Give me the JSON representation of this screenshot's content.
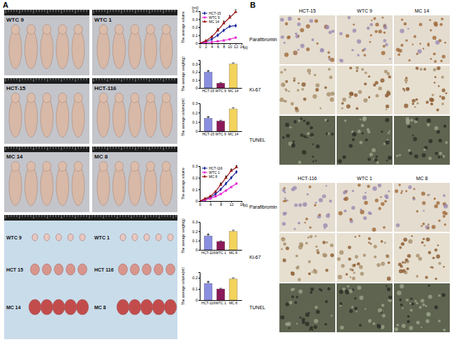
{
  "panel_labels": [
    "A",
    "B"
  ],
  "mice_photos": [
    [
      "WTC 9",
      "WTC 1"
    ],
    [
      "HCT-15",
      "HCT-116"
    ],
    [
      "MC 14",
      "MC 8"
    ]
  ],
  "tumor_photos": [
    [
      "WTC 9",
      "HCT 15",
      "MC 14"
    ],
    [
      "WTC 1",
      "HCT 116",
      "MC 8"
    ]
  ],
  "ihc_grids": [
    {
      "columns": [
        "HCT-15",
        "WTC 9",
        "MC 14"
      ],
      "rows": [
        "Parafibromin",
        "Ki-67",
        "TUNEL"
      ]
    },
    {
      "columns": [
        "HCT-116",
        "WTC 1",
        "MC 8"
      ],
      "rows": [
        "Parafibromin",
        "Ki-67",
        "TUNEL"
      ]
    }
  ],
  "chart_data": [
    {
      "type": "line",
      "ylabel": "The average volume",
      "y_unit": "(ml)",
      "xlabel": "(d)",
      "x": [
        0,
        2,
        4,
        6,
        8,
        10,
        12
      ],
      "xlim": [
        0,
        14
      ],
      "xticks": [
        0,
        2,
        4,
        6,
        8,
        10,
        12,
        14
      ],
      "ylim": [
        0,
        0.4
      ],
      "yticks": [
        0,
        0.1,
        0.2,
        0.3,
        0.4
      ],
      "legend": "upper left",
      "series": [
        {
          "name": "HCT-15",
          "color": "#1c2a9c",
          "marker": "diamond",
          "values": [
            0,
            0.02,
            0.05,
            0.1,
            0.16,
            0.21,
            0.22
          ]
        },
        {
          "name": "WTC 9",
          "color": "#e62ad2",
          "marker": "square",
          "values": [
            0,
            0.01,
            0.015,
            0.025,
            0.035,
            0.05,
            0.07
          ]
        },
        {
          "name": "MC 14",
          "color": "#9a1010",
          "marker": "triangle",
          "values": [
            0,
            0.03,
            0.08,
            0.16,
            0.25,
            0.32,
            0.39
          ]
        }
      ],
      "annotations": [
        {
          "x": 6,
          "y": 0.16,
          "text": "*"
        },
        {
          "x": 8,
          "y": 0.25,
          "text": "*"
        },
        {
          "x": 10,
          "y": 0.32,
          "text": "*"
        },
        {
          "x": 12,
          "y": 0.39,
          "text": "*"
        }
      ]
    },
    {
      "type": "bar",
      "ylabel": "The average weight(g)",
      "categories": [
        "HCT-15",
        "WTC 9",
        "MC 14"
      ],
      "values": [
        0.2,
        0.06,
        0.3
      ],
      "errors": [
        0.012,
        0.006,
        0.015
      ],
      "colors": [
        "#8a8ee0",
        "#8b1a5a",
        "#f2d35c"
      ],
      "ylim": [
        0,
        0.35
      ],
      "yticks": [
        0,
        0.1,
        0.2,
        0.3
      ],
      "annotations": [
        {
          "category": "HCT-15",
          "text": "*"
        }
      ]
    },
    {
      "type": "bar",
      "ylabel": "The average volume(ml)",
      "categories": [
        "HCT-15",
        "WTC 9",
        "MC 14"
      ],
      "values": [
        0.14,
        0.11,
        0.24
      ],
      "errors": [
        0.012,
        0.008,
        0.014
      ],
      "colors": [
        "#8a8ee0",
        "#8b1a5a",
        "#f2d35c"
      ],
      "ylim": [
        0,
        0.3
      ],
      "yticks": [
        0,
        0.1,
        0.2,
        0.3
      ],
      "annotations": [
        {
          "category": "HCT-15",
          "text": "*"
        }
      ]
    },
    {
      "type": "line",
      "ylabel": "The average volume",
      "xlabel": "(d)",
      "x": [
        0,
        2,
        4,
        6,
        8,
        10,
        12,
        14
      ],
      "xlim": [
        0,
        16
      ],
      "xticks": [
        0,
        4,
        8,
        12,
        16
      ],
      "ylim": [
        0,
        0.3
      ],
      "yticks": [
        0,
        0.1,
        0.2,
        0.3
      ],
      "legend": "upper left",
      "series": [
        {
          "name": "HCT-116",
          "color": "#1c2a9c",
          "marker": "diamond",
          "values": [
            0,
            0.01,
            0.03,
            0.06,
            0.1,
            0.15,
            0.2,
            0.25
          ]
        },
        {
          "name": "WTC 1",
          "color": "#e62ad2",
          "marker": "square",
          "values": [
            0,
            0.01,
            0.02,
            0.04,
            0.06,
            0.09,
            0.12,
            0.15
          ]
        },
        {
          "name": "MC 8",
          "color": "#9a1010",
          "marker": "triangle",
          "values": [
            0,
            0.02,
            0.04,
            0.08,
            0.14,
            0.2,
            0.26,
            0.29
          ]
        }
      ],
      "annotations": [
        {
          "x": 8,
          "y": 0.14,
          "text": "*"
        },
        {
          "x": 10,
          "y": 0.2,
          "text": "*"
        },
        {
          "x": 12,
          "y": 0.26,
          "text": "*"
        },
        {
          "x": 14,
          "y": 0.29,
          "text": "*"
        }
      ]
    },
    {
      "type": "bar",
      "ylabel": "The average weight(g)",
      "categories": [
        "HCT-116",
        "WTC 1",
        "MC 8"
      ],
      "values": [
        0.15,
        0.09,
        0.2
      ],
      "errors": [
        0.012,
        0.006,
        0.012
      ],
      "colors": [
        "#8a8ee0",
        "#8b1a5a",
        "#f2d35c"
      ],
      "ylim": [
        0,
        0.3
      ],
      "yticks": [
        0,
        0.1,
        0.2,
        0.3
      ],
      "annotations": [
        {
          "category": "HCT-116",
          "text": "*"
        }
      ]
    },
    {
      "type": "bar",
      "ylabel": "The average volume(ml)",
      "categories": [
        "HCT-116",
        "WTC 1",
        "MC 8"
      ],
      "values": [
        0.15,
        0.1,
        0.19
      ],
      "errors": [
        0.012,
        0.006,
        0.01
      ],
      "colors": [
        "#8a8ee0",
        "#8b1a5a",
        "#f2d35c"
      ],
      "ylim": [
        0,
        0.25
      ],
      "yticks": [
        0,
        0.1,
        0.2
      ],
      "annotations": [
        {
          "category": "HCT-116",
          "text": "*"
        }
      ]
    }
  ]
}
